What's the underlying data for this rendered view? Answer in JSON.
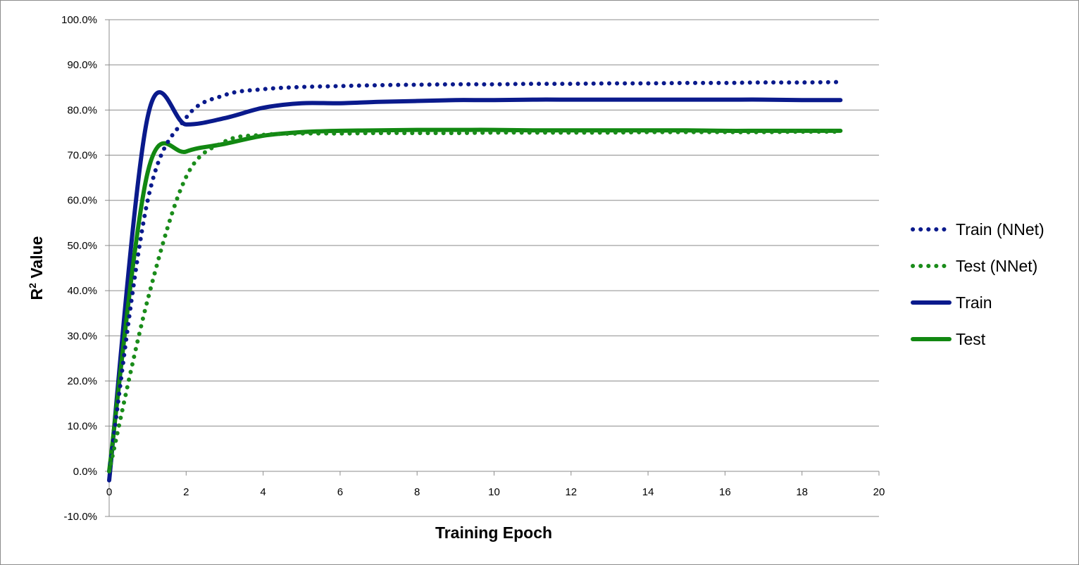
{
  "chart_data": {
    "type": "line",
    "xlabel": "Training Epoch",
    "ylabel": "R",
    "ylabel_sup": "2",
    "ylabel_suffix": " Value",
    "xlim": [
      0,
      20
    ],
    "ylim": [
      -0.1,
      1.0
    ],
    "x_ticks": [
      "0",
      "2",
      "4",
      "6",
      "8",
      "10",
      "12",
      "14",
      "16",
      "18",
      "20"
    ],
    "y_ticks": [
      "-10.0%",
      "0.0%",
      "10.0%",
      "20.0%",
      "30.0%",
      "40.0%",
      "50.0%",
      "60.0%",
      "70.0%",
      "80.0%",
      "90.0%",
      "100.0%"
    ],
    "grid": "horizontal",
    "legend_position": "right",
    "x": [
      0,
      1,
      2,
      3,
      4,
      5,
      6,
      7,
      8,
      9,
      10,
      11,
      12,
      13,
      14,
      15,
      16,
      17,
      18,
      19
    ],
    "series": [
      {
        "name": "Train (NNet)",
        "style": "dotted",
        "color": "#0a1a8c",
        "values": [
          0.0,
          0.6,
          0.783,
          0.833,
          0.846,
          0.851,
          0.853,
          0.855,
          0.856,
          0.857,
          0.857,
          0.858,
          0.858,
          0.859,
          0.859,
          0.86,
          0.86,
          0.861,
          0.861,
          0.862
        ]
      },
      {
        "name": "Test (NNet)",
        "style": "dotted",
        "color": "#1a8c1a",
        "values": [
          0.0,
          0.38,
          0.652,
          0.73,
          0.745,
          0.748,
          0.748,
          0.749,
          0.749,
          0.749,
          0.75,
          0.75,
          0.75,
          0.75,
          0.751,
          0.751,
          0.751,
          0.751,
          0.752,
          0.752
        ]
      },
      {
        "name": "Train",
        "style": "solid",
        "color": "#0a1a8c",
        "values": [
          -0.02,
          0.785,
          0.768,
          0.782,
          0.805,
          0.815,
          0.815,
          0.818,
          0.82,
          0.822,
          0.822,
          0.823,
          0.823,
          0.823,
          0.823,
          0.823,
          0.823,
          0.823,
          0.822,
          0.822
        ]
      },
      {
        "name": "Test",
        "style": "solid",
        "color": "#118811",
        "values": [
          0.0,
          0.662,
          0.708,
          0.725,
          0.743,
          0.751,
          0.754,
          0.755,
          0.756,
          0.756,
          0.756,
          0.755,
          0.755,
          0.755,
          0.755,
          0.755,
          0.754,
          0.754,
          0.754,
          0.754
        ]
      }
    ]
  }
}
